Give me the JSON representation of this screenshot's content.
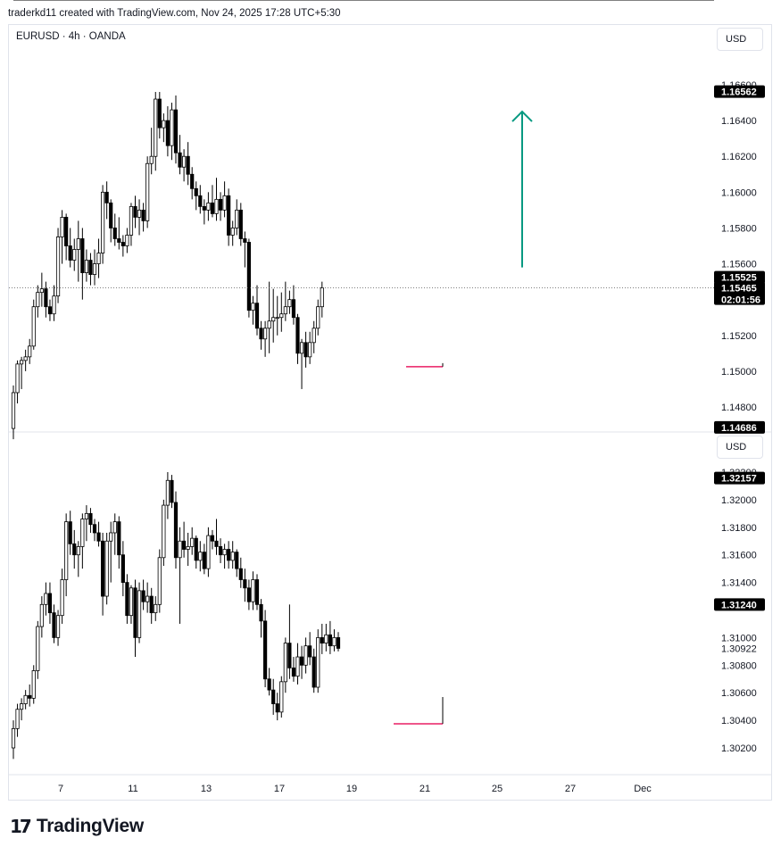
{
  "header": {
    "credit": "traderkd11 created with TradingView.com, Nov 24, 2025 17:28 UTC+5:30"
  },
  "symbol_legend": "EURUSD · 4h · OANDA",
  "currency_top": "USD",
  "currency_bottom": "USD",
  "brand": "TradingView",
  "brand_mark": "17",
  "colors": {
    "candle_fill_down": "#000000",
    "candle_fill_up": "#ffffff",
    "line": "#000000",
    "arrow": "#089981",
    "sweep": "#e91e63",
    "tag_bg": "#000000"
  },
  "chart_data": [
    {
      "type": "candlestick",
      "title": "EURUSD · 4h · OANDA",
      "ylim": [
        1.4668,
        1.5662
      ],
      "ylim_note": "see axis labels",
      "y_axis_labels": [
        "1.16600",
        "1.16400",
        "1.16200",
        "1.16000",
        "1.15800",
        "1.15600",
        "1.15400",
        "1.15200",
        "1.15000",
        "1.14800"
      ],
      "price_tags": [
        {
          "label": "1.16562",
          "value": 1.16562
        },
        {
          "label": "1.15525",
          "value": 1.15525
        },
        {
          "label": "1.15465",
          "value": 1.15465,
          "countdown": "02:01:56"
        },
        {
          "label": "1.14686",
          "value": 1.14686
        }
      ],
      "levels": [
        {
          "name": "high",
          "value": 1.16562
        },
        {
          "name": "resistance",
          "value": 1.15525
        },
        {
          "name": "low",
          "value": 1.14686
        }
      ],
      "sweep_value": 1.15025,
      "arrow": {
        "from": 1.1558,
        "to": 1.1645
      },
      "candles": [
        [
          1.1468,
          1.1492,
          1.1462,
          1.1488
        ],
        [
          1.1488,
          1.1506,
          1.1482,
          1.1504
        ],
        [
          1.1504,
          1.1508,
          1.149,
          1.1506
        ],
        [
          1.1506,
          1.1512,
          1.15,
          1.1508
        ],
        [
          1.1508,
          1.1518,
          1.1504,
          1.1514
        ],
        [
          1.1514,
          1.154,
          1.1512,
          1.1536
        ],
        [
          1.1536,
          1.1548,
          1.153,
          1.1544
        ],
        [
          1.1544,
          1.1555,
          1.1536,
          1.1546
        ],
        [
          1.1546,
          1.155,
          1.153,
          1.1536
        ],
        [
          1.1536,
          1.154,
          1.1528,
          1.1532
        ],
        [
          1.1532,
          1.1548,
          1.1528,
          1.1542
        ],
        [
          1.1542,
          1.158,
          1.1538,
          1.1575
        ],
        [
          1.1575,
          1.159,
          1.156,
          1.1586
        ],
        [
          1.1586,
          1.1588,
          1.1562,
          1.157
        ],
        [
          1.157,
          1.158,
          1.1558,
          1.1562
        ],
        [
          1.1562,
          1.1574,
          1.1556,
          1.1568
        ],
        [
          1.1568,
          1.1584,
          1.155,
          1.1574
        ],
        [
          1.1574,
          1.158,
          1.154,
          1.1555
        ],
        [
          1.1555,
          1.1568,
          1.155,
          1.1562
        ],
        [
          1.1562,
          1.1566,
          1.1548,
          1.1554
        ],
        [
          1.1554,
          1.1568,
          1.1548,
          1.156
        ],
        [
          1.156,
          1.1574,
          1.1552,
          1.1566
        ],
        [
          1.1566,
          1.1604,
          1.156,
          1.16
        ],
        [
          1.16,
          1.1606,
          1.1585,
          1.1594
        ],
        [
          1.1594,
          1.1596,
          1.1572,
          1.158
        ],
        [
          1.158,
          1.1588,
          1.157,
          1.1574
        ],
        [
          1.1574,
          1.1586,
          1.1568,
          1.1572
        ],
        [
          1.1572,
          1.1576,
          1.1564,
          1.157
        ],
        [
          1.157,
          1.158,
          1.1566,
          1.1576
        ],
        [
          1.1576,
          1.1594,
          1.157,
          1.1592
        ],
        [
          1.1592,
          1.1598,
          1.158,
          1.1586
        ],
        [
          1.1586,
          1.1596,
          1.1576,
          1.159
        ],
        [
          1.159,
          1.1594,
          1.1578,
          1.1584
        ],
        [
          1.1584,
          1.162,
          1.158,
          1.1616
        ],
        [
          1.1616,
          1.1636,
          1.161,
          1.162
        ],
        [
          1.162,
          1.1656,
          1.1612,
          1.1652
        ],
        [
          1.1652,
          1.1656,
          1.163,
          1.1636
        ],
        [
          1.1636,
          1.1644,
          1.1628,
          1.164
        ],
        [
          1.164,
          1.1648,
          1.162,
          1.1626
        ],
        [
          1.1626,
          1.165,
          1.1618,
          1.1646
        ],
        [
          1.1646,
          1.1654,
          1.1616,
          1.1622
        ],
        [
          1.1622,
          1.1632,
          1.161,
          1.1614
        ],
        [
          1.1614,
          1.1624,
          1.1606,
          1.162
        ],
        [
          1.162,
          1.1628,
          1.1604,
          1.161
        ],
        [
          1.161,
          1.1614,
          1.1596,
          1.1602
        ],
        [
          1.1602,
          1.1606,
          1.159,
          1.1598
        ],
        [
          1.1598,
          1.1604,
          1.1588,
          1.1592
        ],
        [
          1.1592,
          1.1596,
          1.1582,
          1.159
        ],
        [
          1.159,
          1.16,
          1.1584,
          1.1594
        ],
        [
          1.1594,
          1.1604,
          1.1586,
          1.1588
        ],
        [
          1.1588,
          1.1608,
          1.1584,
          1.1596
        ],
        [
          1.1596,
          1.16,
          1.1584,
          1.159
        ],
        [
          1.159,
          1.1606,
          1.1586,
          1.1598
        ],
        [
          1.1598,
          1.1602,
          1.157,
          1.1576
        ],
        [
          1.1576,
          1.1584,
          1.157,
          1.158
        ],
        [
          1.158,
          1.1596,
          1.1576,
          1.159
        ],
        [
          1.159,
          1.1594,
          1.157,
          1.1574
        ],
        [
          1.1574,
          1.1578,
          1.1558,
          1.1572
        ],
        [
          1.1572,
          1.1574,
          1.153,
          1.1534
        ],
        [
          1.1534,
          1.1542,
          1.1526,
          1.1538
        ],
        [
          1.1538,
          1.1548,
          1.152,
          1.1524
        ],
        [
          1.1524,
          1.1528,
          1.1512,
          1.1518
        ],
        [
          1.1518,
          1.1528,
          1.1508,
          1.1524
        ],
        [
          1.1524,
          1.155,
          1.151,
          1.1528
        ],
        [
          1.1528,
          1.1546,
          1.1516,
          1.153
        ],
        [
          1.153,
          1.1542,
          1.152,
          1.153
        ],
        [
          1.153,
          1.1544,
          1.1522,
          1.1532
        ],
        [
          1.1532,
          1.155,
          1.1528,
          1.1536
        ],
        [
          1.1536,
          1.1545,
          1.1532,
          1.154
        ],
        [
          1.154,
          1.1548,
          1.1526,
          1.153
        ],
        [
          1.153,
          1.1532,
          1.1504,
          1.151
        ],
        [
          1.151,
          1.1518,
          1.149,
          1.1516
        ],
        [
          1.1516,
          1.1522,
          1.1502,
          1.1508
        ],
        [
          1.1508,
          1.1522,
          1.1504,
          1.1516
        ],
        [
          1.1516,
          1.1528,
          1.151,
          1.1524
        ],
        [
          1.1524,
          1.154,
          1.152,
          1.1536
        ],
        [
          1.1536,
          1.155,
          1.153,
          1.15465
        ]
      ]
    },
    {
      "type": "candlestick",
      "ylim": [
        1.3015,
        1.3225
      ],
      "y_axis_labels": [
        "1.32200",
        "1.32000",
        "1.31800",
        "1.31600",
        "1.31400",
        "1.31000",
        "1.30922",
        "1.30800",
        "1.30600",
        "1.30400",
        "1.30200"
      ],
      "price_tags": [
        {
          "label": "1.32157",
          "value": 1.32157
        },
        {
          "label": "1.31240",
          "value": 1.3124
        }
      ],
      "levels": [
        {
          "name": "high",
          "value": 1.32157
        },
        {
          "name": "resistance",
          "value": 1.3124
        }
      ],
      "sweep_value": 1.30375,
      "x_axis_labels": [
        "7",
        "11",
        "13",
        "17",
        "19",
        "21",
        "25",
        "27",
        "Dec"
      ],
      "candles": [
        [
          1.302,
          1.304,
          1.3012,
          1.3034
        ],
        [
          1.3034,
          1.3052,
          1.3028,
          1.3048
        ],
        [
          1.3048,
          1.3056,
          1.304,
          1.3052
        ],
        [
          1.3052,
          1.3062,
          1.3048,
          1.3058
        ],
        [
          1.3058,
          1.3066,
          1.305,
          1.3056
        ],
        [
          1.3056,
          1.308,
          1.3052,
          1.3076
        ],
        [
          1.3076,
          1.3112,
          1.307,
          1.3108
        ],
        [
          1.3108,
          1.313,
          1.31,
          1.3124
        ],
        [
          1.3124,
          1.314,
          1.3116,
          1.3132
        ],
        [
          1.3132,
          1.314,
          1.311,
          1.3118
        ],
        [
          1.3118,
          1.3124,
          1.3096,
          1.31
        ],
        [
          1.31,
          1.312,
          1.3094,
          1.3116
        ],
        [
          1.3116,
          1.315,
          1.311,
          1.3142
        ],
        [
          1.3142,
          1.319,
          1.313,
          1.3184
        ],
        [
          1.3184,
          1.3192,
          1.316,
          1.3168
        ],
        [
          1.3168,
          1.3178,
          1.315,
          1.316
        ],
        [
          1.316,
          1.317,
          1.3144,
          1.3166
        ],
        [
          1.3166,
          1.319,
          1.315,
          1.3186
        ],
        [
          1.3186,
          1.3196,
          1.317,
          1.319
        ],
        [
          1.319,
          1.3194,
          1.3176,
          1.3182
        ],
        [
          1.3182,
          1.3186,
          1.317,
          1.3176
        ],
        [
          1.3176,
          1.3184,
          1.3166,
          1.317
        ],
        [
          1.317,
          1.3176,
          1.3116,
          1.313
        ],
        [
          1.313,
          1.3176,
          1.3124,
          1.317
        ],
        [
          1.317,
          1.3184,
          1.314,
          1.3176
        ],
        [
          1.3176,
          1.319,
          1.316,
          1.3184
        ],
        [
          1.3184,
          1.3188,
          1.315,
          1.316
        ],
        [
          1.316,
          1.317,
          1.313,
          1.314
        ],
        [
          1.314,
          1.3146,
          1.311,
          1.3116
        ],
        [
          1.3116,
          1.3138,
          1.311,
          1.3136
        ],
        [
          1.3136,
          1.3142,
          1.3086,
          1.31
        ],
        [
          1.31,
          1.314,
          1.3096,
          1.3134
        ],
        [
          1.3134,
          1.3142,
          1.312,
          1.3126
        ],
        [
          1.3126,
          1.314,
          1.3118,
          1.313
        ],
        [
          1.313,
          1.3136,
          1.311,
          1.3118
        ],
        [
          1.3118,
          1.313,
          1.3112,
          1.3124
        ],
        [
          1.3124,
          1.3164,
          1.3118,
          1.3158
        ],
        [
          1.3158,
          1.32,
          1.3152,
          1.3196
        ],
        [
          1.3196,
          1.322,
          1.3186,
          1.3214
        ],
        [
          1.3214,
          1.3218,
          1.3194,
          1.3198
        ],
        [
          1.3198,
          1.3206,
          1.315,
          1.3158
        ],
        [
          1.3158,
          1.318,
          1.311,
          1.317
        ],
        [
          1.317,
          1.3184,
          1.3158,
          1.3164
        ],
        [
          1.3164,
          1.3176,
          1.3152,
          1.3166
        ],
        [
          1.3166,
          1.318,
          1.316,
          1.3172
        ],
        [
          1.3172,
          1.3174,
          1.315,
          1.3156
        ],
        [
          1.3156,
          1.317,
          1.3148,
          1.3162
        ],
        [
          1.3162,
          1.3168,
          1.3146,
          1.315
        ],
        [
          1.315,
          1.318,
          1.3144,
          1.3174
        ],
        [
          1.3174,
          1.3178,
          1.3164,
          1.317
        ],
        [
          1.317,
          1.3186,
          1.316,
          1.3166
        ],
        [
          1.3166,
          1.3172,
          1.3154,
          1.316
        ],
        [
          1.316,
          1.3168,
          1.315,
          1.3164
        ],
        [
          1.3164,
          1.317,
          1.315,
          1.3156
        ],
        [
          1.3156,
          1.317,
          1.315,
          1.3162
        ],
        [
          1.3162,
          1.3164,
          1.3144,
          1.315
        ],
        [
          1.315,
          1.3158,
          1.3136,
          1.3142
        ],
        [
          1.3142,
          1.315,
          1.3126,
          1.3136
        ],
        [
          1.3136,
          1.3142,
          1.312,
          1.3126
        ],
        [
          1.3126,
          1.3148,
          1.312,
          1.3142
        ],
        [
          1.3142,
          1.3146,
          1.312,
          1.3124
        ],
        [
          1.3124,
          1.3128,
          1.31,
          1.3112
        ],
        [
          1.3112,
          1.312,
          1.3064,
          1.307
        ],
        [
          1.307,
          1.3078,
          1.3058,
          1.3062
        ],
        [
          1.3062,
          1.307,
          1.3044,
          1.3052
        ],
        [
          1.3052,
          1.306,
          1.304,
          1.3046
        ],
        [
          1.3046,
          1.3072,
          1.3042,
          1.3068
        ],
        [
          1.3068,
          1.31,
          1.306,
          1.3096
        ],
        [
          1.3096,
          1.3124,
          1.307,
          1.3078
        ],
        [
          1.3078,
          1.3086,
          1.3068,
          1.3072
        ],
        [
          1.3072,
          1.3096,
          1.3066,
          1.3086
        ],
        [
          1.3086,
          1.3094,
          1.307,
          1.308
        ],
        [
          1.308,
          1.31,
          1.3074,
          1.3094
        ],
        [
          1.3094,
          1.3104,
          1.308,
          1.3086
        ],
        [
          1.3086,
          1.3092,
          1.306,
          1.3064
        ],
        [
          1.3064,
          1.3106,
          1.306,
          1.31
        ],
        [
          1.31,
          1.311,
          1.3088,
          1.3096
        ],
        [
          1.3096,
          1.311,
          1.309,
          1.3102
        ],
        [
          1.3102,
          1.3112,
          1.3088,
          1.3094
        ],
        [
          1.3094,
          1.3106,
          1.309,
          1.31
        ],
        [
          1.31,
          1.3104,
          1.309,
          1.30922
        ]
      ]
    }
  ]
}
